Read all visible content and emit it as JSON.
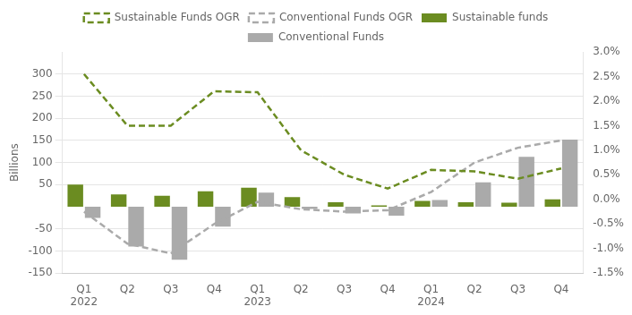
{
  "chart_data": {
    "type": "bar",
    "categories": [
      "Q1\n2022",
      "Q2",
      "Q3",
      "Q4",
      "Q1\n2023",
      "Q2",
      "Q3",
      "Q4",
      "Q1\n2024",
      "Q2",
      "Q3",
      "Q4"
    ],
    "ylabel": "Billions",
    "ylim": [
      -150,
      350
    ],
    "yticks": [
      -150,
      -100,
      -50,
      50,
      100,
      150,
      200,
      250,
      300
    ],
    "y2lim": [
      -0.015,
      0.03
    ],
    "y2ticks": [
      {
        "value": -0.015,
        "label": "-1.5%"
      },
      {
        "value": -0.01,
        "label": "-1.0%"
      },
      {
        "value": -0.005,
        "label": "-0.5%"
      },
      {
        "value": 0.0,
        "label": "0.0%"
      },
      {
        "value": 0.005,
        "label": "0.5%"
      },
      {
        "value": 0.01,
        "label": "1.0%"
      },
      {
        "value": 0.015,
        "label": "1.5%"
      },
      {
        "value": 0.02,
        "label": "2.0%"
      },
      {
        "value": 0.025,
        "label": "2.5%"
      },
      {
        "value": 0.03,
        "label": "3.0%"
      }
    ],
    "grid": true,
    "legend": "top",
    "series": [
      {
        "name": "Sustainable funds",
        "color": "#6b8c21",
        "values": [
          50,
          28,
          25,
          35,
          43,
          22,
          10,
          3,
          13,
          10,
          9,
          17
        ]
      },
      {
        "name": "Conventional Funds",
        "color": "#aaaaaa",
        "values": [
          -25,
          -90,
          -120,
          -45,
          32,
          -5,
          -15,
          -20,
          15,
          55,
          113,
          152
        ]
      },
      {
        "name": "Sustainable Funds OGR",
        "type": "line",
        "line_style": "dashed",
        "axis": "y2",
        "color": "#6b8c21",
        "values": [
          0.0255,
          0.015,
          0.015,
          0.022,
          0.0218,
          0.01,
          0.005,
          0.0022,
          0.006,
          0.0057,
          0.0042,
          0.0063
        ]
      },
      {
        "name": "Conventional Funds OGR",
        "type": "line",
        "line_style": "dashed",
        "axis": "y2",
        "color": "#aaaaaa",
        "values": [
          -0.0025,
          -0.009,
          -0.011,
          -0.005,
          -0.0005,
          -0.002,
          -0.0025,
          -0.0022,
          0.0015,
          0.0075,
          0.0105,
          0.012
        ]
      }
    ]
  }
}
